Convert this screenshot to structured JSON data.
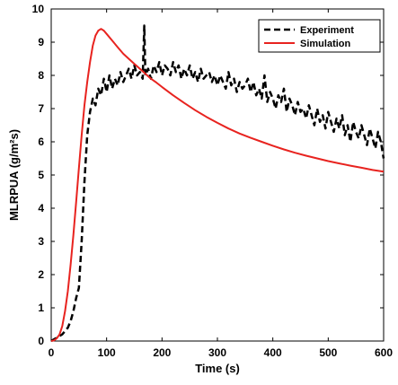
{
  "chart_data": {
    "type": "line",
    "title": "",
    "xlabel": "Time (s)",
    "ylabel": "MLRPUA (g/m²s)",
    "xlim": [
      0,
      600
    ],
    "ylim": [
      0,
      10
    ],
    "xticks": [
      0,
      100,
      200,
      300,
      400,
      500,
      600
    ],
    "yticks": [
      0,
      1,
      2,
      3,
      4,
      5,
      6,
      7,
      8,
      9,
      10
    ],
    "grid": false,
    "legend_position": "top-right",
    "series": [
      {
        "name": "Experiment",
        "style": "dashed",
        "color": "#000000",
        "x": [
          0,
          5,
          10,
          15,
          20,
          25,
          30,
          35,
          40,
          45,
          50,
          55,
          60,
          65,
          70,
          75,
          80,
          85,
          90,
          95,
          100,
          105,
          110,
          115,
          120,
          125,
          130,
          135,
          140,
          145,
          150,
          155,
          160,
          165,
          168,
          170,
          175,
          180,
          185,
          190,
          195,
          200,
          205,
          210,
          215,
          220,
          225,
          230,
          235,
          240,
          245,
          250,
          255,
          260,
          265,
          270,
          275,
          280,
          285,
          290,
          295,
          300,
          305,
          310,
          315,
          320,
          325,
          330,
          335,
          340,
          345,
          350,
          355,
          360,
          365,
          370,
          375,
          380,
          385,
          390,
          395,
          400,
          405,
          410,
          415,
          420,
          425,
          430,
          435,
          440,
          445,
          450,
          455,
          460,
          465,
          470,
          475,
          480,
          485,
          490,
          495,
          500,
          505,
          510,
          515,
          520,
          525,
          530,
          535,
          540,
          545,
          550,
          555,
          560,
          565,
          570,
          575,
          580,
          585,
          590,
          595,
          600
        ],
        "y": [
          0.0,
          0.05,
          0.1,
          0.15,
          0.2,
          0.3,
          0.4,
          0.6,
          0.9,
          1.3,
          1.6,
          3.0,
          4.8,
          6.2,
          6.9,
          7.3,
          7.1,
          7.6,
          7.4,
          7.9,
          7.5,
          8.0,
          7.6,
          7.9,
          7.7,
          8.1,
          7.8,
          8.0,
          8.2,
          7.9,
          8.3,
          8.0,
          8.1,
          7.9,
          9.5,
          8.0,
          8.2,
          7.9,
          8.3,
          8.1,
          8.4,
          8.0,
          8.3,
          8.2,
          8.0,
          8.4,
          8.1,
          8.3,
          7.9,
          8.2,
          8.0,
          8.3,
          7.9,
          8.1,
          7.8,
          8.2,
          7.9,
          8.0,
          8.1,
          7.8,
          8.0,
          7.7,
          8.0,
          7.8,
          7.6,
          8.1,
          7.7,
          7.9,
          7.5,
          7.8,
          7.6,
          7.7,
          7.9,
          7.5,
          7.8,
          7.4,
          7.6,
          7.3,
          8.0,
          7.2,
          7.5,
          7.3,
          7.0,
          7.4,
          7.2,
          7.6,
          6.9,
          7.3,
          7.1,
          6.8,
          7.2,
          6.9,
          7.0,
          6.7,
          7.1,
          6.8,
          6.5,
          7.0,
          6.6,
          6.8,
          6.4,
          6.9,
          6.6,
          6.3,
          6.7,
          6.4,
          6.8,
          6.2,
          6.5,
          6.0,
          6.6,
          6.3,
          6.1,
          6.5,
          6.2,
          5.9,
          6.4,
          6.1,
          5.8,
          6.3,
          6.0,
          5.5
        ]
      },
      {
        "name": "Simulation",
        "style": "solid",
        "color": "#e8231f",
        "x": [
          0,
          5,
          10,
          15,
          20,
          25,
          30,
          35,
          40,
          45,
          50,
          55,
          60,
          65,
          70,
          75,
          80,
          85,
          90,
          95,
          100,
          110,
          120,
          130,
          140,
          150,
          160,
          170,
          180,
          190,
          200,
          220,
          240,
          260,
          280,
          300,
          320,
          340,
          360,
          380,
          400,
          420,
          440,
          460,
          480,
          500,
          520,
          540,
          560,
          580,
          600
        ],
        "y": [
          0.0,
          0.02,
          0.08,
          0.2,
          0.45,
          0.9,
          1.5,
          2.3,
          3.2,
          4.2,
          5.2,
          6.2,
          7.1,
          7.8,
          8.4,
          8.9,
          9.2,
          9.35,
          9.4,
          9.35,
          9.25,
          9.05,
          8.85,
          8.65,
          8.5,
          8.35,
          8.2,
          8.05,
          7.9,
          7.78,
          7.65,
          7.4,
          7.17,
          6.95,
          6.75,
          6.57,
          6.4,
          6.25,
          6.12,
          6.0,
          5.88,
          5.77,
          5.67,
          5.58,
          5.5,
          5.42,
          5.35,
          5.28,
          5.22,
          5.15,
          5.1
        ]
      }
    ]
  }
}
